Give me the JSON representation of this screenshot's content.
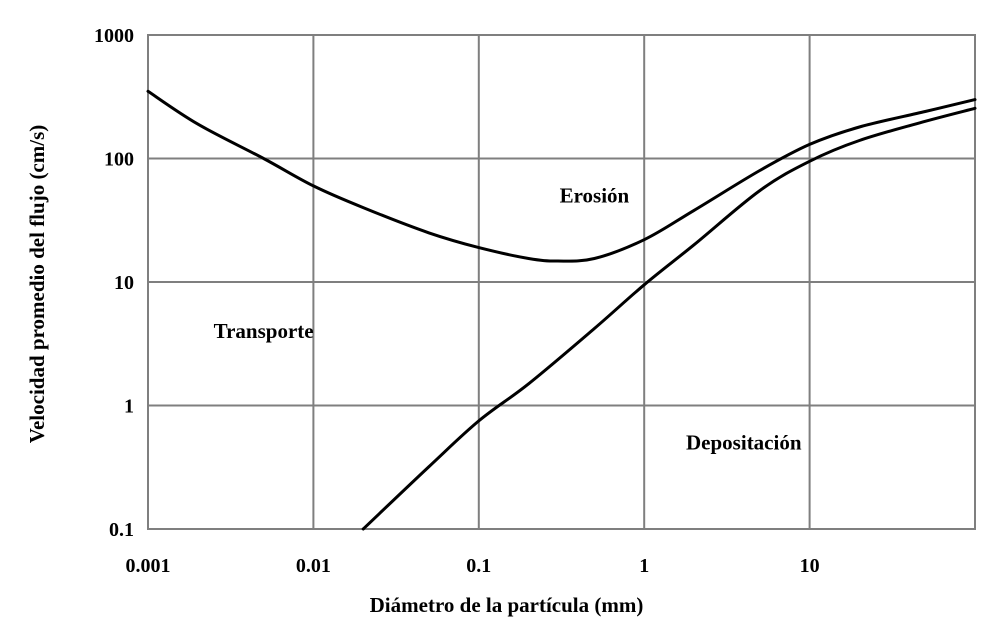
{
  "chart_data": {
    "type": "line",
    "title": "",
    "xlabel": "Diámetro de la partícula (mm)",
    "ylabel": "Velocidad promedio del flujo (cm/s)",
    "x_scale": "log",
    "y_scale": "log",
    "xlim": [
      0.001,
      100
    ],
    "ylim": [
      0.1,
      1000
    ],
    "x_ticks": [
      0.001,
      0.01,
      0.1,
      1,
      10
    ],
    "x_tick_labels": [
      "0.001",
      "0.01",
      "0.1",
      "1",
      "10"
    ],
    "y_ticks": [
      0.1,
      1,
      10,
      100,
      1000
    ],
    "y_tick_labels": [
      "0.1",
      "1",
      "10",
      "100",
      "1000"
    ],
    "grid": true,
    "series": [
      {
        "x": [
          0.001,
          0.002,
          0.005,
          0.01,
          0.02,
          0.05,
          0.1,
          0.2,
          0.3,
          0.5,
          1,
          2,
          5,
          10,
          20,
          50,
          100
        ],
        "y": [
          350,
          190,
          100,
          60,
          40,
          25,
          19,
          15.5,
          14.8,
          15.5,
          22,
          38,
          80,
          130,
          180,
          240,
          300
        ]
      },
      {
        "x": [
          0.02,
          0.05,
          0.1,
          0.2,
          0.5,
          1,
          2,
          5,
          10,
          20,
          50,
          100
        ],
        "y": [
          0.1,
          0.32,
          0.75,
          1.5,
          4.2,
          9.5,
          20,
          55,
          95,
          140,
          200,
          255
        ]
      }
    ],
    "annotations": [
      {
        "text": "Erosión",
        "x": 0.5,
        "y": 50
      },
      {
        "text": "Transporte",
        "x": 0.005,
        "y": 4
      },
      {
        "text": "Depositación",
        "x": 4,
        "y": 0.5
      }
    ]
  }
}
